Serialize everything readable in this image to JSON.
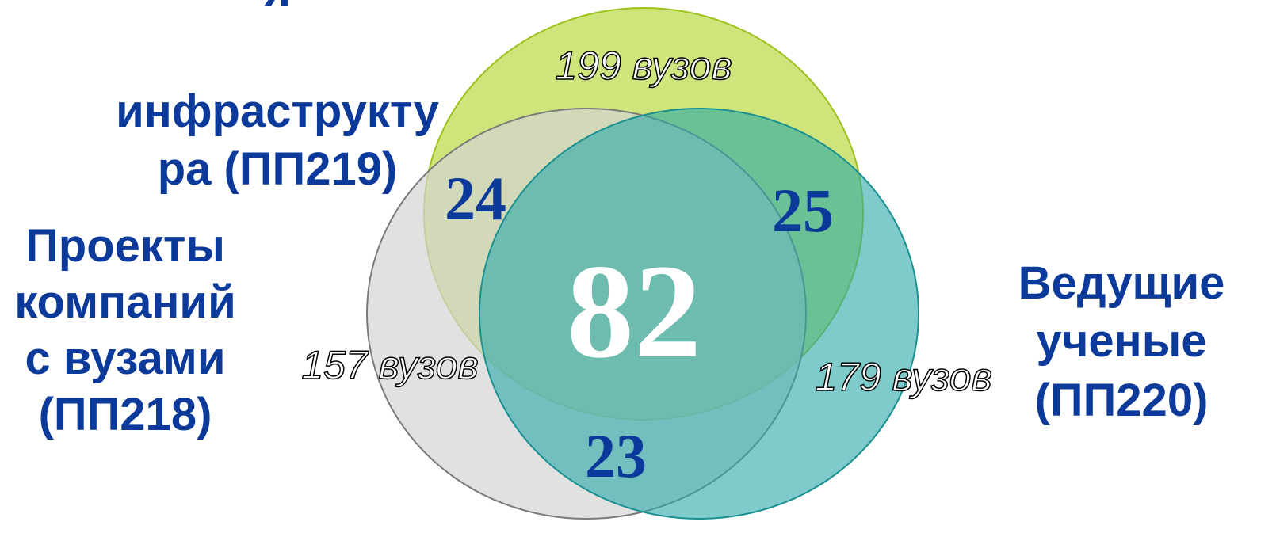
{
  "sets": [
    {
      "label_lines": [
        "я",
        "инфраструкту",
        "ра (ПП219)"
      ],
      "count": "199 вузов"
    },
    {
      "label_lines": [
        "Проекты",
        "компаний",
        "с вузами",
        "(ПП218)"
      ],
      "count": "157 вузов"
    },
    {
      "label_lines": [
        "Ведущие",
        "ученые",
        "(ПП220)"
      ],
      "count": "179 вузов"
    }
  ],
  "intersections": {
    "pp219_pp218": "24",
    "pp219_pp220": "25",
    "pp218_pp220": "23",
    "all": "82"
  }
}
